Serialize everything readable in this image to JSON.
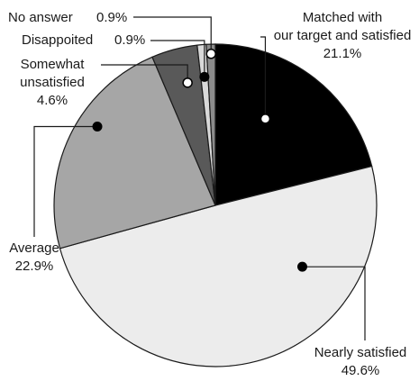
{
  "chart_data": {
    "type": "pie",
    "start_angle_deg": 0,
    "direction": "clockwise",
    "slices": [
      {
        "key": "matched",
        "label_lines": [
          "Matched with",
          "our target and satisfied"
        ],
        "value": 21.1,
        "value_text": "21.1%",
        "color": "#000000",
        "marker": "hollow"
      },
      {
        "key": "nearly",
        "label_lines": [
          "Nearly satisfied"
        ],
        "value": 49.6,
        "value_text": "49.6%",
        "color": "#ececec",
        "marker": "filled"
      },
      {
        "key": "average",
        "label_lines": [
          "Average"
        ],
        "value": 22.9,
        "value_text": "22.9%",
        "color": "#a6a6a6",
        "marker": "filled"
      },
      {
        "key": "somewhat",
        "label_lines": [
          "Somewhat",
          "unsatisfied"
        ],
        "value": 4.6,
        "value_text": "4.6%",
        "color": "#595959",
        "marker": "hollow"
      },
      {
        "key": "disappointed",
        "label_lines": [
          "Disappoited"
        ],
        "value": 0.9,
        "value_text": "0.9%",
        "color": "#d9d9d9",
        "marker": "filled"
      },
      {
        "key": "noanswer",
        "label_lines": [
          "No answer"
        ],
        "value": 0.9,
        "value_text": "0.9%",
        "color": "#8c8c8c",
        "marker": "hollow"
      }
    ]
  }
}
